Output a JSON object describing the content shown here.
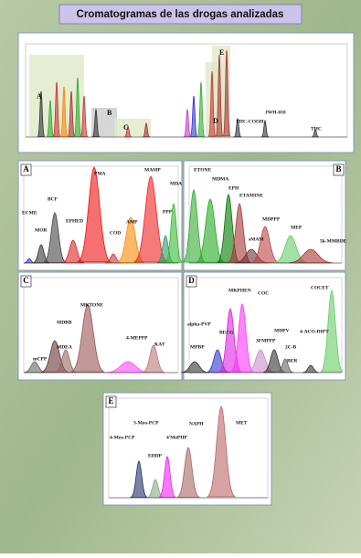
{
  "header": {
    "title": "Cromatogramas de las drogas analizadas"
  },
  "overview": {
    "labels": [
      "A",
      "B",
      "C",
      "D",
      "E",
      "THC-COOH",
      "JWH-018",
      "THC"
    ]
  },
  "panels": [
    {
      "letter": "A",
      "labels": [
        "ECME",
        "MOR",
        "BCF",
        "EPHED",
        "PMA",
        "COD",
        "AMP",
        "MAMP",
        "PPP",
        "MDA"
      ]
    },
    {
      "letter": "B",
      "labels": [
        "ETONE",
        "MDMA",
        "EPH",
        "ETAMINE",
        "MDPPP",
        "sMAM",
        "MEP",
        "5k-MMBDE"
      ]
    },
    {
      "letter": "C",
      "labels": [
        "mCPP",
        "MDBB",
        "MDEA",
        "MKTONE",
        "4-MEPPP",
        "KAT"
      ]
    },
    {
      "letter": "D",
      "labels": [
        "MKPHEN",
        "COC",
        "alpha-PVP",
        "MPBP",
        "BECG",
        "3FMPPP",
        "MDPV",
        "2C-B",
        "BER",
        "COCET",
        "4-ACO-DIPT"
      ]
    },
    {
      "letter": "E",
      "labels": [
        "3-Meo-PCP",
        "4-Meo-PCP",
        "EDDP",
        "4'MePHP",
        "NAPH",
        "MET"
      ]
    }
  ]
}
